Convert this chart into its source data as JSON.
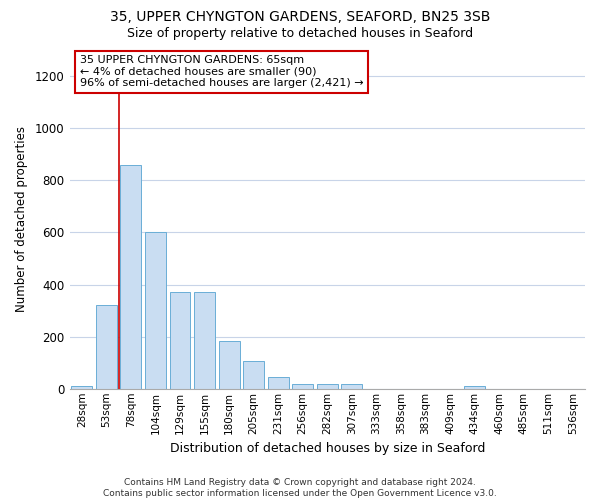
{
  "title_line1": "35, UPPER CHYNGTON GARDENS, SEAFORD, BN25 3SB",
  "title_line2": "Size of property relative to detached houses in Seaford",
  "xlabel": "Distribution of detached houses by size in Seaford",
  "ylabel": "Number of detached properties",
  "footnote": "Contains HM Land Registry data © Crown copyright and database right 2024.\nContains public sector information licensed under the Open Government Licence v3.0.",
  "categories": [
    "28sqm",
    "53sqm",
    "78sqm",
    "104sqm",
    "129sqm",
    "155sqm",
    "180sqm",
    "205sqm",
    "231sqm",
    "256sqm",
    "282sqm",
    "307sqm",
    "333sqm",
    "358sqm",
    "383sqm",
    "409sqm",
    "434sqm",
    "460sqm",
    "485sqm",
    "511sqm",
    "536sqm"
  ],
  "values": [
    10,
    320,
    860,
    600,
    370,
    370,
    185,
    105,
    47,
    20,
    20,
    20,
    0,
    0,
    0,
    0,
    10,
    0,
    0,
    0,
    0
  ],
  "bar_color": "#c9ddf2",
  "bar_edgecolor": "#6aaed6",
  "ylim": [
    0,
    1300
  ],
  "yticks": [
    0,
    200,
    400,
    600,
    800,
    1000,
    1200
  ],
  "property_line_x": 1.5,
  "property_line_color": "#cc0000",
  "annotation_text": "35 UPPER CHYNGTON GARDENS: 65sqm\n← 4% of detached houses are smaller (90)\n96% of semi-detached houses are larger (2,421) →",
  "annotation_box_color": "#ffffff",
  "annotation_box_edgecolor": "#cc0000",
  "grid_color": "#c8d4e8",
  "background_color": "#ffffff"
}
